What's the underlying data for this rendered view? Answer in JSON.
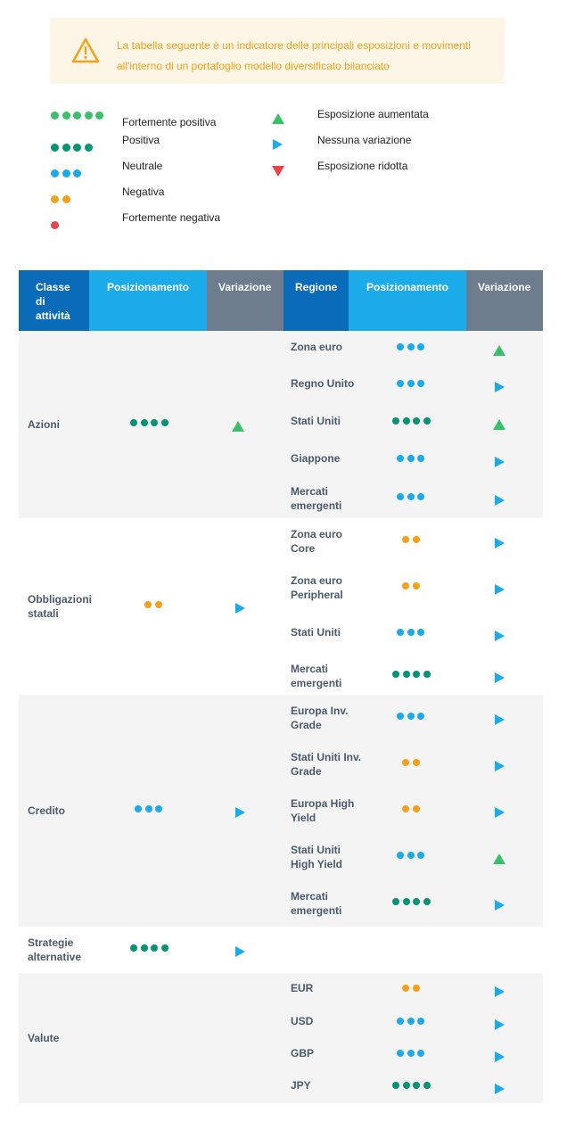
{
  "banner": {
    "icon": "warning-icon",
    "text": "La tabella seguente è un indicatore delle principali esposizioni e movimenti all'interno di un portafoglio modello diversificato bilanciato",
    "color": "#f5a01a",
    "background": "#fdf5e6"
  },
  "legend": {
    "positioning": [
      {
        "label": "Fortemente positiva",
        "dots": 5,
        "color": "#3cbf6a"
      },
      {
        "label": "Positiva",
        "dots": 4,
        "color": "#009474"
      },
      {
        "label": "Neutrale",
        "dots": 3,
        "color": "#1aabe8"
      },
      {
        "label": "Negativa",
        "dots": 2,
        "color": "#f5a01a"
      },
      {
        "label": "Fortemente negativa",
        "dots": 1,
        "color": "#e8434a"
      }
    ],
    "changes": [
      {
        "label": "Esposizione aumentata",
        "icon": "triangle-up-icon",
        "color": "#3cbf6a"
      },
      {
        "label": "Nessuna variazione",
        "icon": "triangle-right-icon",
        "color": "#1aabe8"
      },
      {
        "label": "Esposizione ridotta",
        "icon": "triangle-down-icon",
        "color": "#e8434a"
      }
    ]
  },
  "table": {
    "headers": {
      "asset_class": "Classe di attività",
      "positioning_1": "Posizionamento",
      "change_1": "Variazione",
      "region": "Regione",
      "positioning_2": "Posizionamento",
      "change_2": "Variazione"
    },
    "header_colors": {
      "dark_blue": "#0a6bb8",
      "light_blue": "#1aabe8",
      "gray": "#6d7d8d"
    },
    "groups": [
      {
        "asset_class": "Azioni",
        "positioning": 4,
        "change": "up",
        "regions": [
          {
            "name": "Zona euro",
            "positioning": 3,
            "change": "up"
          },
          {
            "name": "Regno Unito",
            "positioning": 3,
            "change": "right"
          },
          {
            "name": "Stati Uniti",
            "positioning": 4,
            "change": "up"
          },
          {
            "name": "Giappone",
            "positioning": 3,
            "change": "right"
          },
          {
            "name": "Mercati emergenti",
            "positioning": 3,
            "change": "right"
          }
        ]
      },
      {
        "asset_class": "Obbligazioni statali",
        "positioning": 2,
        "change": "right",
        "regions": [
          {
            "name": "Zona euro Core",
            "positioning": 2,
            "change": "right"
          },
          {
            "name": "Zona euro Peripheral",
            "positioning": 2,
            "change": "right"
          },
          {
            "name": "Stati Uniti",
            "positioning": 3,
            "change": "right"
          },
          {
            "name": "Mercati emergenti",
            "positioning": 4,
            "change": "right"
          }
        ]
      },
      {
        "asset_class": "Credito",
        "positioning": 3,
        "change": "right",
        "regions": [
          {
            "name": "Europa Inv. Grade",
            "positioning": 3,
            "change": "right"
          },
          {
            "name": "Stati Uniti Inv. Grade",
            "positioning": 2,
            "change": "right"
          },
          {
            "name": "Europa High Yield",
            "positioning": 2,
            "change": "right"
          },
          {
            "name": "Stati Uniti High Yield",
            "positioning": 3,
            "change": "up"
          },
          {
            "name": "Mercati emergenti",
            "positioning": 4,
            "change": "right"
          }
        ]
      },
      {
        "asset_class": "Strategie alternative",
        "positioning": 4,
        "change": "right",
        "regions": []
      },
      {
        "asset_class": "Valute",
        "positioning": null,
        "change": null,
        "regions": [
          {
            "name": "EUR",
            "positioning": 2,
            "change": "right"
          },
          {
            "name": "USD",
            "positioning": 3,
            "change": "right"
          },
          {
            "name": "GBP",
            "positioning": 3,
            "change": "right"
          },
          {
            "name": "JPY",
            "positioning": 4,
            "change": "right"
          }
        ]
      }
    ]
  }
}
